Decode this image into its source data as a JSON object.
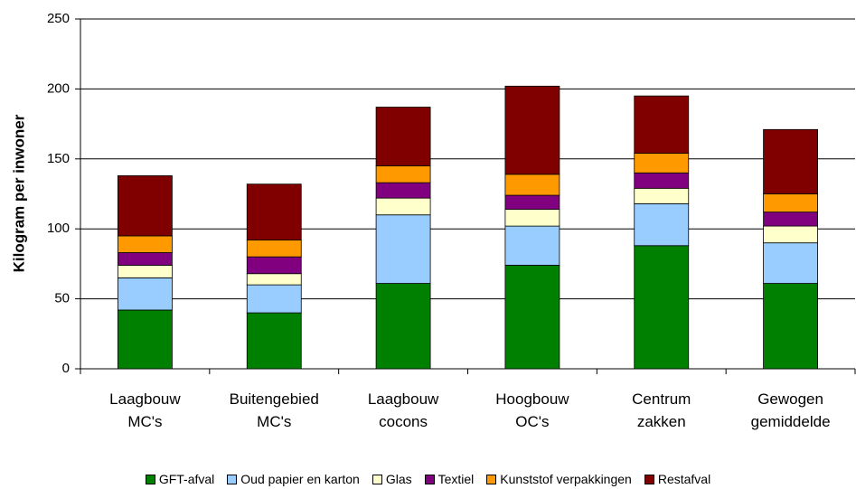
{
  "chart_data": {
    "type": "stacked-bar",
    "y_label": "Kilogram per inwoner",
    "categories": [
      "Laagbouw MC's",
      "Buitengebied MC's",
      "Laagbouw cocons",
      "Hoogbouw OC's",
      "Centrum zakken",
      "Gewogen gemiddelde"
    ],
    "series": [
      {
        "name": "GFT-afval",
        "color": "#008000",
        "values": [
          42,
          40,
          61,
          74,
          88,
          61
        ]
      },
      {
        "name": "Oud papier en karton",
        "color": "#99ccff",
        "values": [
          23,
          20,
          49,
          28,
          30,
          29
        ]
      },
      {
        "name": "Glas",
        "color": "#ffffcc",
        "values": [
          9,
          8,
          12,
          12,
          11,
          12
        ]
      },
      {
        "name": "Textiel",
        "color": "#800080",
        "values": [
          9,
          12,
          11,
          10,
          11,
          10
        ]
      },
      {
        "name": "Kunststof verpakkingen",
        "color": "#ff9900",
        "values": [
          12,
          12,
          12,
          15,
          14,
          13
        ]
      },
      {
        "name": "Restafval",
        "color": "#800000",
        "values": [
          43,
          40,
          42,
          63,
          41,
          46
        ]
      }
    ],
    "ylim": [
      0,
      250
    ],
    "yticks": [
      0,
      50,
      100,
      150,
      200,
      250
    ],
    "grid": true,
    "legend": "bottom"
  }
}
